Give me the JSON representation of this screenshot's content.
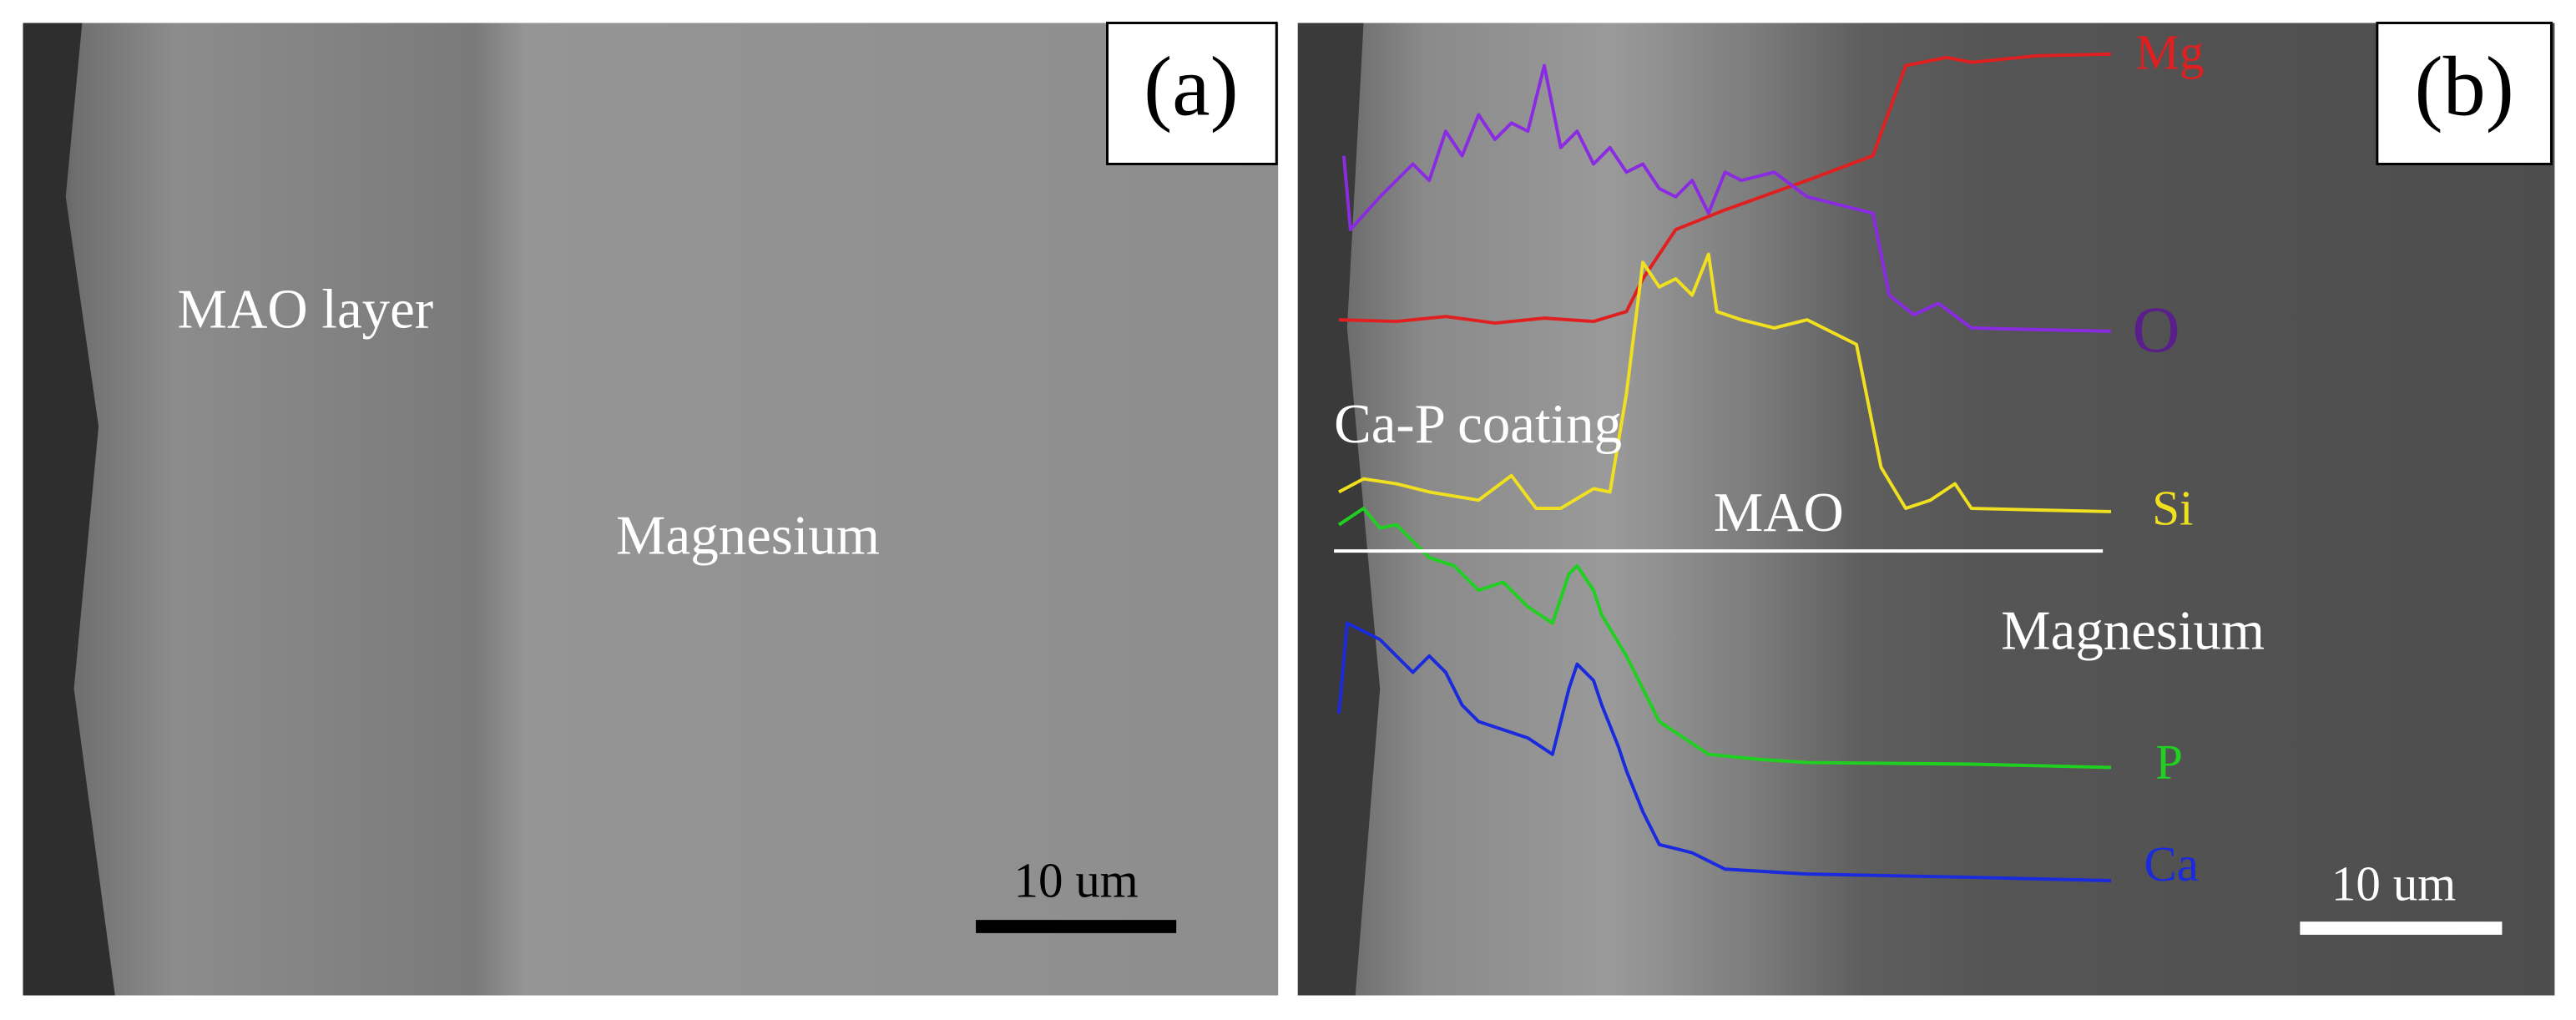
{
  "panels": [
    {
      "label": "(a)",
      "annotations": [
        "MAO layer",
        "Magnesium"
      ],
      "scale_bar": "10 um"
    },
    {
      "label": "(b)",
      "annotations": [
        "Ca-P coating",
        "MAO",
        "Magnesium"
      ],
      "elements": [
        "Mg",
        "O",
        "Si",
        "P",
        "Ca"
      ],
      "scale_bar": "10 um"
    }
  ]
}
